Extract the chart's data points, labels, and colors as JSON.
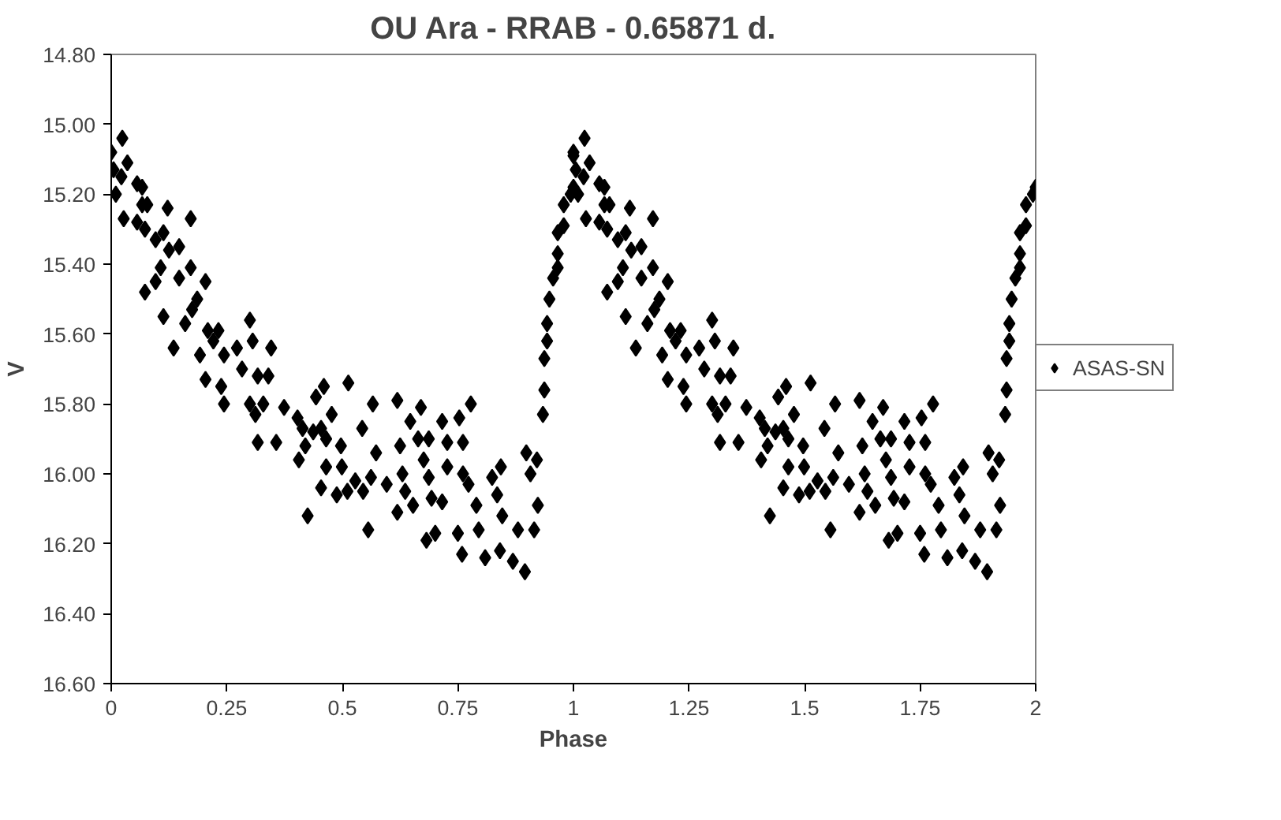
{
  "chart_data": {
    "type": "scatter",
    "title": "OU Ara - RRAB - 0.65871 d.",
    "xlabel": "Phase",
    "ylabel": "V",
    "xlim": [
      0,
      2
    ],
    "xticks": [
      0,
      0.25,
      0.5,
      0.75,
      1,
      1.25,
      1.5,
      1.75,
      2
    ],
    "ylim": [
      16.6,
      14.8
    ],
    "yticks": [
      {
        "value": 14.8,
        "label": "14.80"
      },
      {
        "value": 15.0,
        "label": "15.00"
      },
      {
        "value": 15.2,
        "label": "15.20"
      },
      {
        "value": 15.4,
        "label": "15.40"
      },
      {
        "value": 15.6,
        "label": "15.60"
      },
      {
        "value": 15.8,
        "label": "15.80"
      },
      {
        "value": 16.0,
        "label": "16.00"
      },
      {
        "value": 16.2,
        "label": "16.20"
      },
      {
        "value": 16.4,
        "label": "16.40"
      },
      {
        "value": 16.6,
        "label": "16.60"
      }
    ],
    "grid": false,
    "legend": "right",
    "marker": "diamond",
    "series": [
      {
        "name": "ASAS-SN",
        "color": "#000000",
        "x": [
          0.0,
          0.024,
          0.035,
          0.005,
          0.022,
          0.01,
          0.056,
          0.067,
          0.027,
          0.056,
          0.067,
          0.078,
          0.122,
          0.172,
          0.073,
          0.096,
          0.113,
          0.125,
          0.147,
          0.107,
          0.172,
          0.096,
          0.147,
          0.204,
          0.073,
          0.186,
          0.175,
          0.113,
          0.16,
          0.135,
          0.209,
          0.232,
          0.221,
          0.192,
          0.244,
          0.272,
          0.3,
          0.306,
          0.346,
          0.283,
          0.317,
          0.34,
          0.204,
          0.238,
          0.244,
          0.3,
          0.329,
          0.312,
          0.374,
          0.317,
          0.357,
          0.403,
          0.414,
          0.437,
          0.454,
          0.443,
          0.46,
          0.513,
          0.477,
          0.465,
          0.42,
          0.406,
          0.497,
          0.465,
          0.499,
          0.543,
          0.566,
          0.619,
          0.67,
          0.647,
          0.664,
          0.687,
          0.716,
          0.753,
          0.778,
          0.573,
          0.625,
          0.676,
          0.727,
          0.761,
          0.727,
          0.761,
          0.773,
          0.454,
          0.488,
          0.511,
          0.528,
          0.545,
          0.562,
          0.596,
          0.63,
          0.636,
          0.687,
          0.693,
          0.716,
          0.653,
          0.619,
          0.425,
          0.556,
          0.79,
          0.824,
          0.843,
          0.835,
          0.898,
          0.921,
          0.907,
          0.923,
          0.915,
          0.795,
          0.846,
          0.75,
          0.682,
          0.701,
          0.759,
          0.809,
          0.841,
          0.869,
          0.88,
          0.895,
          0.934,
          0.937,
          0.937,
          0.943,
          0.943,
          0.948,
          0.956,
          0.966,
          0.966,
          0.966,
          0.979,
          0.979,
          0.994,
          1.0,
          1.0,
          1.0,
          1.024,
          1.035,
          1.005,
          1.022,
          1.01,
          1.056,
          1.067,
          1.027,
          1.056,
          1.067,
          1.078,
          1.122,
          1.172,
          1.073,
          1.096,
          1.113,
          1.125,
          1.147,
          1.107,
          1.172,
          1.096,
          1.147,
          1.204,
          1.073,
          1.186,
          1.175,
          1.113,
          1.16,
          1.135,
          1.209,
          1.232,
          1.221,
          1.192,
          1.244,
          1.272,
          1.3,
          1.306,
          1.346,
          1.283,
          1.317,
          1.34,
          1.204,
          1.238,
          1.244,
          1.3,
          1.329,
          1.312,
          1.374,
          1.317,
          1.357,
          1.403,
          1.414,
          1.437,
          1.454,
          1.443,
          1.46,
          1.513,
          1.477,
          1.465,
          1.42,
          1.406,
          1.497,
          1.465,
          1.499,
          1.543,
          1.566,
          1.619,
          1.67,
          1.647,
          1.664,
          1.687,
          1.716,
          1.753,
          1.778,
          1.573,
          1.625,
          1.676,
          1.727,
          1.761,
          1.727,
          1.761,
          1.773,
          1.454,
          1.488,
          1.511,
          1.528,
          1.545,
          1.562,
          1.596,
          1.63,
          1.636,
          1.687,
          1.693,
          1.716,
          1.653,
          1.619,
          1.425,
          1.556,
          1.79,
          1.824,
          1.843,
          1.835,
          1.898,
          1.921,
          1.907,
          1.923,
          1.915,
          1.795,
          1.846,
          1.75,
          1.682,
          1.701,
          1.759,
          1.809,
          1.841,
          1.869,
          1.88,
          1.895,
          1.934,
          1.937,
          1.937,
          1.943,
          1.943,
          1.948,
          1.956,
          1.966,
          1.966,
          1.966,
          1.979,
          1.979,
          1.994,
          2.0
        ],
        "values": [
          15.08,
          15.04,
          15.11,
          15.13,
          15.15,
          15.2,
          15.17,
          15.18,
          15.27,
          15.28,
          15.23,
          15.23,
          15.24,
          15.27,
          15.3,
          15.33,
          15.31,
          15.36,
          15.35,
          15.41,
          15.41,
          15.45,
          15.44,
          15.45,
          15.48,
          15.5,
          15.53,
          15.55,
          15.57,
          15.64,
          15.59,
          15.59,
          15.62,
          15.66,
          15.66,
          15.64,
          15.56,
          15.62,
          15.64,
          15.7,
          15.72,
          15.72,
          15.73,
          15.75,
          15.8,
          15.8,
          15.8,
          15.83,
          15.81,
          15.91,
          15.91,
          15.84,
          15.87,
          15.88,
          15.87,
          15.78,
          15.75,
          15.74,
          15.83,
          15.9,
          15.92,
          15.96,
          15.92,
          15.98,
          15.98,
          15.87,
          15.8,
          15.79,
          15.81,
          15.85,
          15.9,
          15.9,
          15.85,
          15.84,
          15.8,
          15.94,
          15.92,
          15.96,
          15.91,
          15.91,
          15.98,
          16.0,
          16.03,
          16.04,
          16.06,
          16.05,
          16.02,
          16.05,
          16.01,
          16.03,
          16.0,
          16.05,
          16.01,
          16.07,
          16.08,
          16.09,
          16.11,
          16.12,
          16.16,
          16.09,
          16.01,
          15.98,
          16.06,
          15.94,
          15.96,
          16.0,
          16.09,
          16.16,
          16.16,
          16.12,
          16.17,
          16.19,
          16.17,
          16.23,
          16.24,
          16.22,
          16.25,
          16.16,
          16.28,
          15.83,
          15.76,
          15.67,
          15.62,
          15.57,
          15.5,
          15.44,
          15.41,
          15.37,
          15.31,
          15.29,
          15.23,
          15.2,
          15.18,
          15.09,
          15.08,
          15.04,
          15.11,
          15.13,
          15.15,
          15.2,
          15.17,
          15.18,
          15.27,
          15.28,
          15.23,
          15.23,
          15.24,
          15.27,
          15.3,
          15.33,
          15.31,
          15.36,
          15.35,
          15.41,
          15.41,
          15.45,
          15.44,
          15.45,
          15.48,
          15.5,
          15.53,
          15.55,
          15.57,
          15.64,
          15.59,
          15.59,
          15.62,
          15.66,
          15.66,
          15.64,
          15.56,
          15.62,
          15.64,
          15.7,
          15.72,
          15.72,
          15.73,
          15.75,
          15.8,
          15.8,
          15.8,
          15.83,
          15.81,
          15.91,
          15.91,
          15.84,
          15.87,
          15.88,
          15.87,
          15.78,
          15.75,
          15.74,
          15.83,
          15.9,
          15.92,
          15.96,
          15.92,
          15.98,
          15.98,
          15.87,
          15.8,
          15.79,
          15.81,
          15.85,
          15.9,
          15.9,
          15.85,
          15.84,
          15.8,
          15.94,
          15.92,
          15.96,
          15.91,
          15.91,
          15.98,
          16.0,
          16.03,
          16.04,
          16.06,
          16.05,
          16.02,
          16.05,
          16.01,
          16.03,
          16.0,
          16.05,
          16.01,
          16.07,
          16.08,
          16.09,
          16.11,
          16.12,
          16.16,
          16.09,
          16.01,
          15.98,
          16.06,
          15.94,
          15.96,
          16.0,
          16.09,
          16.16,
          16.16,
          16.12,
          16.17,
          16.19,
          16.17,
          16.23,
          16.24,
          16.22,
          16.25,
          16.16,
          16.28,
          15.83,
          15.76,
          15.67,
          15.62,
          15.57,
          15.5,
          15.44,
          15.41,
          15.37,
          15.31,
          15.29,
          15.23,
          15.2,
          15.18
        ]
      }
    ]
  }
}
